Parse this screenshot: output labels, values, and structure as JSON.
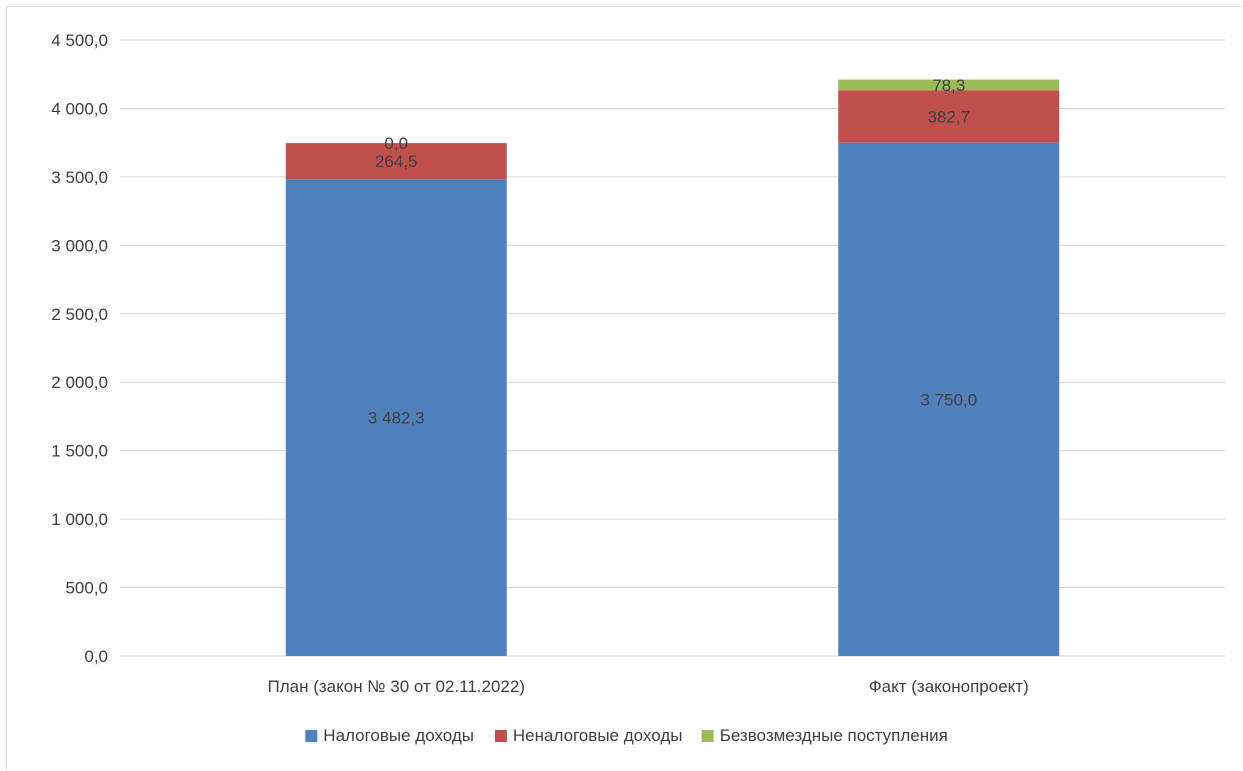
{
  "chart_data": {
    "type": "bar",
    "stacked": true,
    "title": "",
    "xlabel": "",
    "ylabel": "",
    "categories": [
      "План (закон № 30 от 02.11.2022)",
      "Факт (законопроект)"
    ],
    "series": [
      {
        "name": "Налоговые доходы",
        "color": "#4f81bd",
        "values": [
          3482.3,
          3750.0
        ],
        "labels": [
          "3 482,3",
          "3 750,0"
        ]
      },
      {
        "name": "Неналоговые доходы",
        "color": "#c0504d",
        "values": [
          264.5,
          382.7
        ],
        "labels": [
          "264,5",
          "382,7"
        ]
      },
      {
        "name": "Безвозмездные поступления",
        "color": "#9bbb59",
        "values": [
          0.0,
          78.3
        ],
        "labels": [
          "0,0",
          "78,3"
        ]
      }
    ],
    "ylim": [
      0,
      4500
    ],
    "yticks": [
      0,
      500,
      1000,
      1500,
      2000,
      2500,
      3000,
      3500,
      4000,
      4500
    ],
    "ytick_labels": [
      "0,0",
      "500,0",
      "1 000,0",
      "1 500,0",
      "2 000,0",
      "2 500,0",
      "3 000,0",
      "3 500,0",
      "4 000,0",
      "4 500,0"
    ],
    "grid": true,
    "legend": "bottom"
  }
}
